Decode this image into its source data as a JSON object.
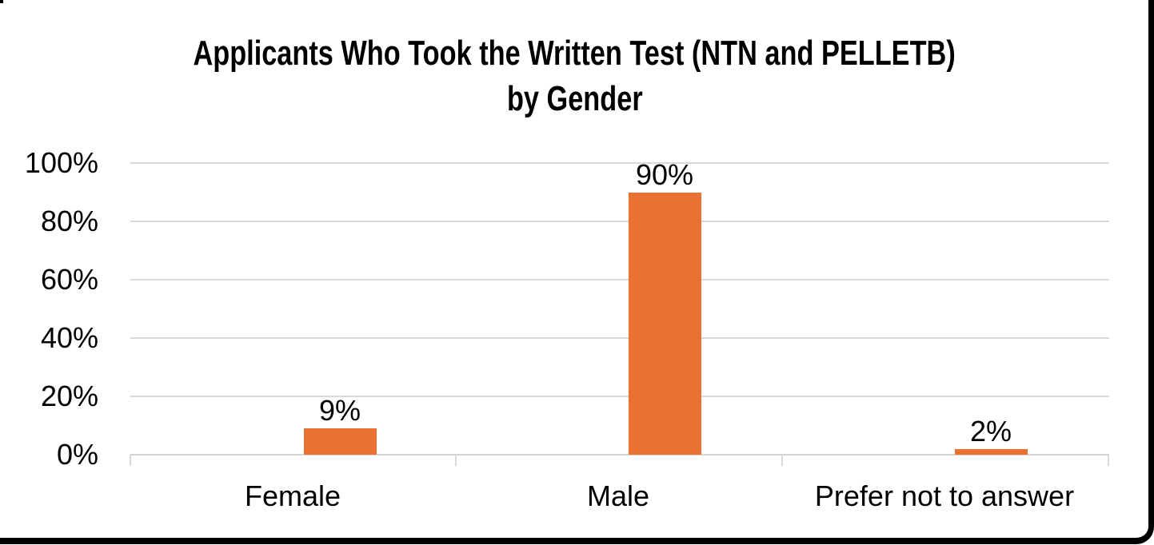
{
  "frame": {
    "border_color": "#000000",
    "background_color": "#FFFFFF"
  },
  "chart_data": {
    "type": "bar",
    "title": "Applicants Who Took the Written Test (NTN and PELLETB) by Gender",
    "title_lines": [
      "Applicants Who Took the Written Test (NTN and PELLETB)",
      "by Gender"
    ],
    "categories": [
      "Female",
      "Male",
      "Prefer not to answer"
    ],
    "values": [
      9,
      90,
      2
    ],
    "data_labels": [
      "9%",
      "90%",
      "2%"
    ],
    "y_axis": {
      "ticks": [
        "100%",
        "80%",
        "60%",
        "40%",
        "20%",
        "0%"
      ],
      "min": 0,
      "max": 100,
      "unit": "percent",
      "grid": true
    },
    "xlabel": "",
    "ylabel": "",
    "legend": "none",
    "bar_color": "#E97132",
    "gridline_color": "#D9D9D9",
    "axis_line_color": "#D3D3D3",
    "text_color": "#000000"
  }
}
